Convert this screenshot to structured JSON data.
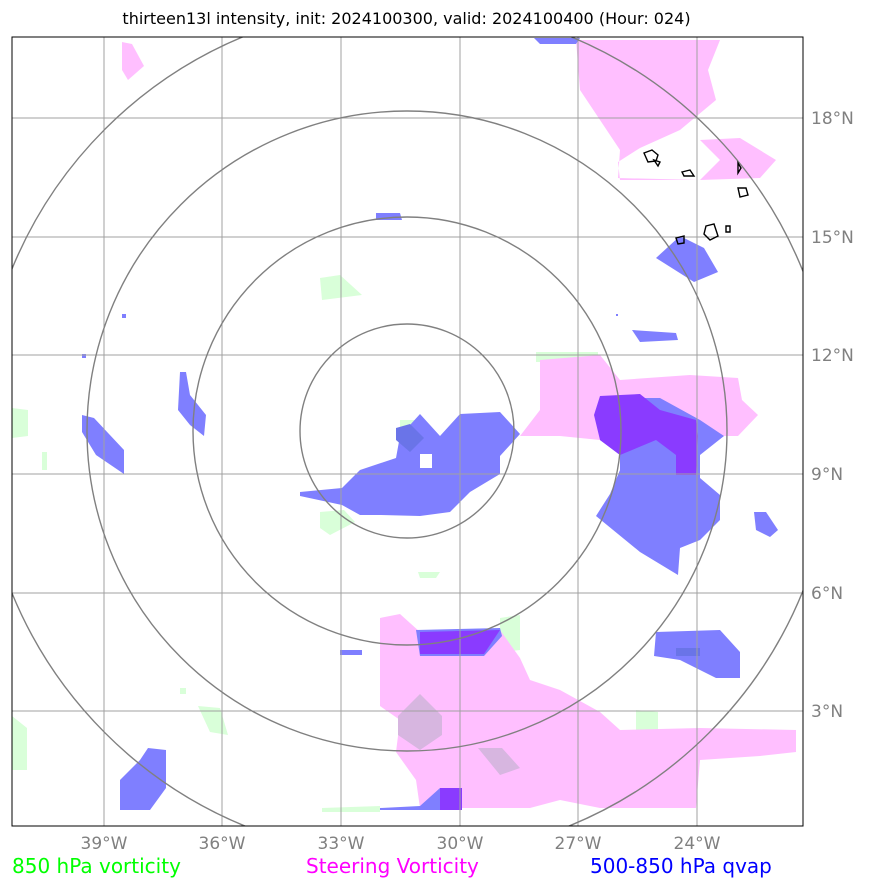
{
  "title": "thirteen13l intensity, init: 2024100300, valid: 2024100400 (Hour: 024)",
  "map": {
    "lon_range": [
      -41,
      -21
    ],
    "lat_range": [
      0,
      20
    ],
    "lon_ticks": [
      "39°W",
      "36°W",
      "33°W",
      "30°W",
      "27°W",
      "24°W"
    ],
    "lat_ticks": [
      "18°N",
      "15°N",
      "12°N",
      "9°N",
      "6°N",
      "3°N"
    ],
    "gridline_color": "#a0a0a0",
    "tick_label_color": "#808080",
    "range_ring_color": "#808080",
    "range_ring_count": 4
  },
  "legend": {
    "vort850": {
      "label": "850 hPa vorticity",
      "color": "#00ff00"
    },
    "steering": {
      "label": "Steering Vorticity",
      "color": "#ff00ff"
    },
    "qvap": {
      "label": "500-850 hPa qvap",
      "color": "#0000ff"
    }
  },
  "field_colors": {
    "vort850_fill": "#d9ffd9",
    "steering_fill": "#ffbfff",
    "qvap_fill": "#7f7fff",
    "overlap_fill": "#8a3bff",
    "intensity_contour": "#000000"
  }
}
